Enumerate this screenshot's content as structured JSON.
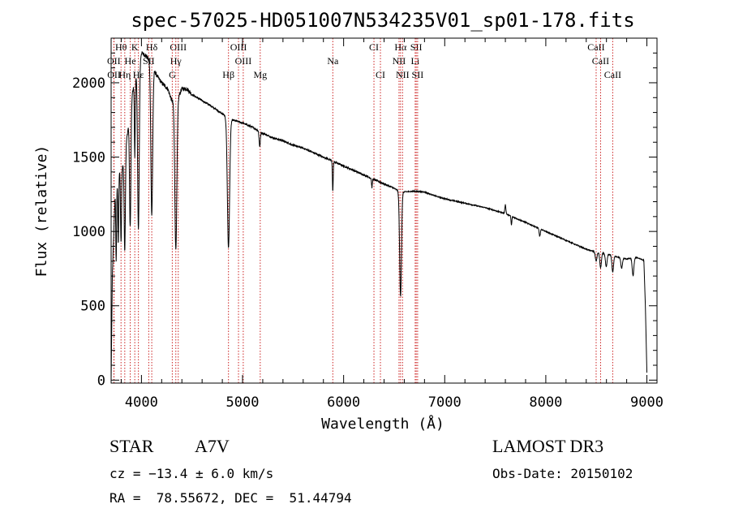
{
  "chart_data": {
    "type": "line",
    "title": "spec-57025-HD051007N534235V01_sp01-178.fits",
    "xlabel": "Wavelength (Å)",
    "ylabel": "Flux (relative)",
    "xlim": [
      3700,
      9100
    ],
    "ylim": [
      -20,
      2300
    ],
    "x_ticks": [
      4000,
      5000,
      6000,
      7000,
      8000,
      9000
    ],
    "y_ticks": [
      0,
      500,
      1000,
      1500,
      2000
    ],
    "x_tick_labels": [
      "4000",
      "5000",
      "6000",
      "7000",
      "8000",
      "9000"
    ],
    "y_tick_labels": [
      "0",
      "500",
      "1000",
      "1500",
      "2000"
    ],
    "line_color": "#000000",
    "marker_color": "#cc2222",
    "continuum": [
      [
        3700,
        0
      ],
      [
        3712,
        700
      ],
      [
        3740,
        1250
      ],
      [
        3780,
        1400
      ],
      [
        3820,
        1450
      ],
      [
        3860,
        1650
      ],
      [
        3900,
        1900
      ],
      [
        3950,
        2050
      ],
      [
        4000,
        2200
      ],
      [
        4050,
        2180
      ],
      [
        4100,
        2120
      ],
      [
        4150,
        2050
      ],
      [
        4200,
        2000
      ],
      [
        4260,
        1960
      ],
      [
        4300,
        1880
      ],
      [
        4350,
        1880
      ],
      [
        4400,
        1960
      ],
      [
        4450,
        1960
      ],
      [
        4500,
        1920
      ],
      [
        4600,
        1880
      ],
      [
        4700,
        1840
      ],
      [
        4800,
        1790
      ],
      [
        4860,
        1760
      ],
      [
        4900,
        1750
      ],
      [
        5000,
        1730
      ],
      [
        5100,
        1700
      ],
      [
        5200,
        1660
      ],
      [
        5300,
        1630
      ],
      [
        5400,
        1610
      ],
      [
        5500,
        1580
      ],
      [
        5600,
        1560
      ],
      [
        5700,
        1530
      ],
      [
        5800,
        1500
      ],
      [
        5900,
        1470
      ],
      [
        6000,
        1440
      ],
      [
        6100,
        1410
      ],
      [
        6200,
        1380
      ],
      [
        6300,
        1350
      ],
      [
        6400,
        1320
      ],
      [
        6500,
        1290
      ],
      [
        6560,
        1265
      ],
      [
        6700,
        1270
      ],
      [
        6800,
        1265
      ],
      [
        6900,
        1240
      ],
      [
        7000,
        1220
      ],
      [
        7100,
        1205
      ],
      [
        7200,
        1190
      ],
      [
        7300,
        1175
      ],
      [
        7400,
        1160
      ],
      [
        7500,
        1140
      ],
      [
        7600,
        1120
      ],
      [
        7700,
        1090
      ],
      [
        7800,
        1060
      ],
      [
        7900,
        1030
      ],
      [
        8000,
        1000
      ],
      [
        8100,
        970
      ],
      [
        8200,
        940
      ],
      [
        8300,
        910
      ],
      [
        8400,
        880
      ],
      [
        8500,
        860
      ],
      [
        8600,
        850
      ],
      [
        8700,
        830
      ],
      [
        8800,
        815
      ],
      [
        8900,
        825
      ],
      [
        8970,
        805
      ],
      [
        8985,
        500
      ],
      [
        9000,
        50
      ]
    ],
    "absorption": [
      {
        "center": 3750,
        "depth": 500,
        "width": 4
      },
      {
        "center": 3771,
        "depth": 450,
        "width": 4
      },
      {
        "center": 3798,
        "depth": 500,
        "width": 5
      },
      {
        "center": 3835,
        "depth": 650,
        "width": 6
      },
      {
        "center": 3889,
        "depth": 800,
        "width": 7
      },
      {
        "center": 3934,
        "depth": 500,
        "width": 4
      },
      {
        "center": 3970,
        "depth": 1100,
        "width": 8
      },
      {
        "center": 4102,
        "depth": 1000,
        "width": 9
      },
      {
        "center": 4340,
        "depth": 1000,
        "width": 10
      },
      {
        "center": 4861,
        "depth": 870,
        "width": 11
      },
      {
        "center": 5170,
        "depth": 100,
        "width": 6
      },
      {
        "center": 5893,
        "depth": 200,
        "width": 4
      },
      {
        "center": 6280,
        "depth": 60,
        "width": 4
      },
      {
        "center": 6563,
        "depth": 700,
        "width": 9
      },
      {
        "center": 7600,
        "depth": -60,
        "width": 5
      },
      {
        "center": 7660,
        "depth": 60,
        "width": 4
      },
      {
        "center": 7940,
        "depth": 50,
        "width": 6
      },
      {
        "center": 8498,
        "depth": 60,
        "width": 8
      },
      {
        "center": 8542,
        "depth": 100,
        "width": 8
      },
      {
        "center": 8598,
        "depth": 90,
        "width": 8
      },
      {
        "center": 8662,
        "depth": 110,
        "width": 8
      },
      {
        "center": 8750,
        "depth": 70,
        "width": 8
      },
      {
        "center": 8863,
        "depth": 120,
        "width": 8
      }
    ],
    "line_markers": [
      {
        "label": "Hθ",
        "wavelength": 3798,
        "row": 1
      },
      {
        "label": "K",
        "wavelength": 3934,
        "row": 1
      },
      {
        "label": "Hδ",
        "wavelength": 4102,
        "row": 1
      },
      {
        "label": "OIII",
        "wavelength": 4364,
        "row": 1
      },
      {
        "label": "OIII",
        "wavelength": 4960,
        "row": 1
      },
      {
        "label": "CI",
        "wavelength": 6300,
        "row": 1
      },
      {
        "label": "Hα",
        "wavelength": 6563,
        "row": 1
      },
      {
        "label": "SII",
        "wavelength": 6718,
        "row": 1
      },
      {
        "label": "CaII",
        "wavelength": 8498,
        "row": 1
      },
      {
        "label": "OII",
        "wavelength": 3727,
        "row": 2
      },
      {
        "label": "He",
        "wavelength": 3889,
        "row": 2
      },
      {
        "label": "SII",
        "wavelength": 4072,
        "row": 2
      },
      {
        "label": "Hγ",
        "wavelength": 4340,
        "row": 2
      },
      {
        "label": "OIII",
        "wavelength": 5007,
        "row": 2
      },
      {
        "label": "Na",
        "wavelength": 5893,
        "row": 2
      },
      {
        "label": "NII",
        "wavelength": 6548,
        "row": 2
      },
      {
        "label": "Li",
        "wavelength": 6708,
        "row": 2
      },
      {
        "label": "CaII",
        "wavelength": 8542,
        "row": 2
      },
      {
        "label": "OII",
        "wavelength": 3729,
        "row": 3
      },
      {
        "label": "Hη",
        "wavelength": 3835,
        "row": 3
      },
      {
        "label": "Hε",
        "wavelength": 3970,
        "row": 3
      },
      {
        "label": "G",
        "wavelength": 4305,
        "row": 3
      },
      {
        "label": "Hβ",
        "wavelength": 4861,
        "row": 3
      },
      {
        "label": "Mg",
        "wavelength": 5175,
        "row": 3
      },
      {
        "label": "CI",
        "wavelength": 6364,
        "row": 3
      },
      {
        "label": "NII",
        "wavelength": 6583,
        "row": 3
      },
      {
        "label": "SII",
        "wavelength": 6732,
        "row": 3
      },
      {
        "label": "CaII",
        "wavelength": 8662,
        "row": 3
      }
    ]
  },
  "info": {
    "object_class": "STAR",
    "subclass": "A7V",
    "survey": "LAMOST DR3",
    "redshift": "cz = −13.4 ± 6.0 km/s",
    "obs_date": "Obs-Date: 20150102",
    "coords": "RA =  78.55672, DEC =  51.44794"
  }
}
